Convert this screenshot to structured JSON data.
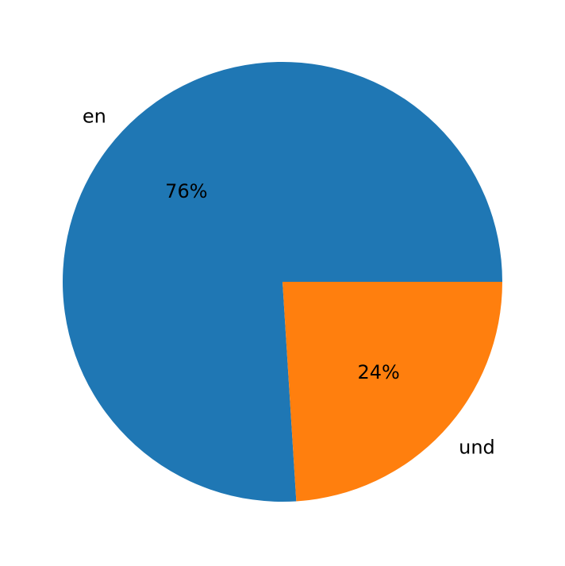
{
  "chart_data": {
    "type": "pie",
    "categories": [
      "en",
      "und"
    ],
    "values": [
      76,
      24
    ],
    "percent_labels": [
      "76%",
      "24%"
    ],
    "colors": [
      "#1f77b4",
      "#ff7f0e"
    ],
    "start_angle_deg": 0,
    "direction": "counterclockwise",
    "title": "",
    "legend": "none"
  }
}
